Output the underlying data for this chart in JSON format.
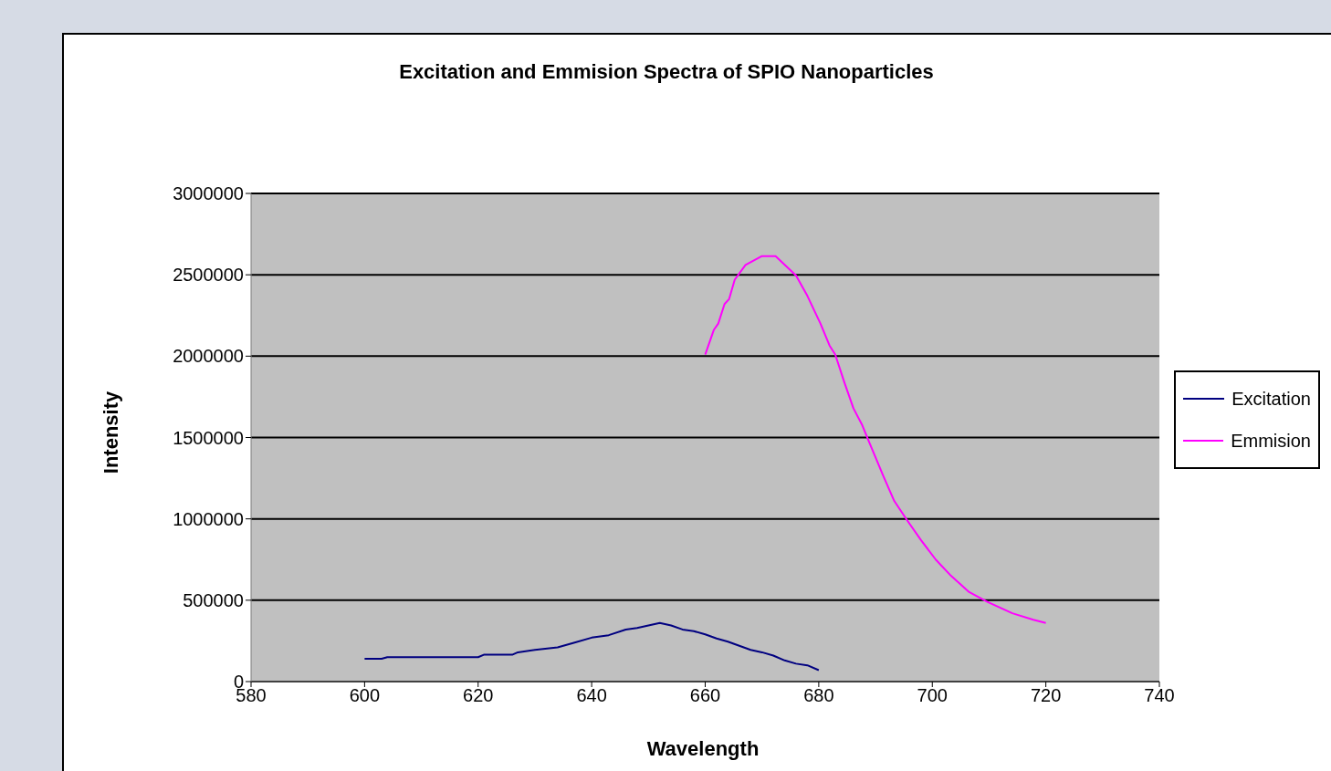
{
  "chart_data": {
    "type": "line",
    "title": "Excitation and Emmision Spectra of SPIO Nanoparticles",
    "xlabel": "Wavelength",
    "ylabel": "Intensity",
    "xlim": [
      580,
      740
    ],
    "xticks": [
      580,
      600,
      620,
      640,
      660,
      680,
      700,
      720,
      740
    ],
    "ylim": [
      0,
      3000000
    ],
    "yticks": [
      0,
      500000,
      1000000,
      1500000,
      2000000,
      2500000,
      3000000
    ],
    "grid": "y",
    "legend": "right",
    "marker": "none",
    "line_style": "solid",
    "series": [
      {
        "name": "Excitation",
        "color": "#000080",
        "x": [
          600,
          603,
          604,
          620,
          621,
          626,
          627,
          630,
          634,
          637,
          640,
          643,
          646,
          648,
          650,
          652,
          654,
          656,
          658,
          660,
          662,
          664,
          666,
          668,
          670,
          672,
          674,
          676,
          678,
          680
        ],
        "values": [
          140000,
          140000,
          150000,
          150000,
          165000,
          165000,
          180000,
          195000,
          210000,
          240000,
          270000,
          285000,
          320000,
          330000,
          345000,
          360000,
          345000,
          320000,
          310000,
          290000,
          265000,
          245000,
          220000,
          195000,
          180000,
          160000,
          130000,
          110000,
          100000,
          70000
        ]
      },
      {
        "name": "Emmision",
        "color": "#ff00ff",
        "x": [
          660,
          661.5,
          662.3,
          663.4,
          664.2,
          665.2,
          667.1,
          670,
          672.4,
          676,
          678,
          680.3,
          681.9,
          682.9,
          684.5,
          686.1,
          687.6,
          688.9,
          691.3,
          693.3,
          695.6,
          698,
          700.6,
          703.3,
          706.5,
          709.7,
          714.1,
          717.8,
          720
        ],
        "values": [
          2010000,
          2160000,
          2200000,
          2320000,
          2350000,
          2470000,
          2560000,
          2615000,
          2615000,
          2495000,
          2370000,
          2200000,
          2065000,
          2010000,
          1840000,
          1680000,
          1580000,
          1470000,
          1270000,
          1110000,
          990000,
          870000,
          750000,
          650000,
          550000,
          490000,
          420000,
          380000,
          360000
        ]
      }
    ]
  }
}
